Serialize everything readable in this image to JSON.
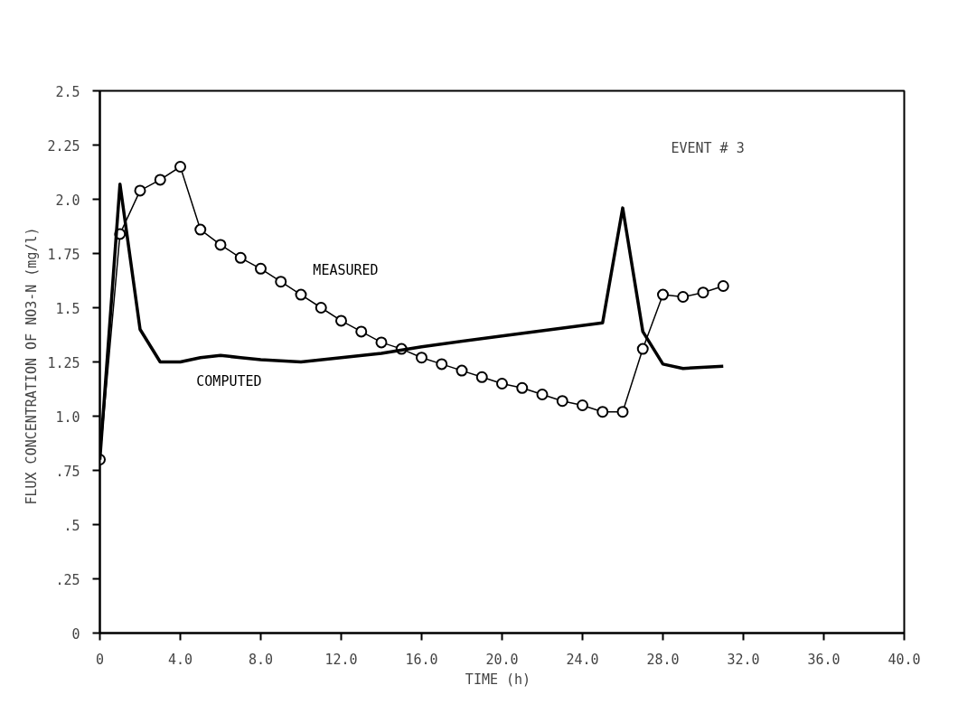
{
  "chart_data": {
    "type": "line",
    "xlabel": "TIME  (h)",
    "ylabel": "FLUX CONCENTRATION OF NO3-N  (mg/l)",
    "annotations": [
      "EVENT # 3"
    ],
    "xlim": [
      0,
      40
    ],
    "ylim": [
      0,
      2.5
    ],
    "xticks": [
      0,
      {
        "value": 4,
        "label": "4.0"
      },
      {
        "value": 8,
        "label": "8.0"
      },
      {
        "value": 12,
        "label": "12.0"
      },
      {
        "value": 16,
        "label": "16.0"
      },
      {
        "value": 20,
        "label": "20.0"
      },
      {
        "value": 24,
        "label": "24.0"
      },
      {
        "value": 28,
        "label": "28.0"
      },
      {
        "value": 32,
        "label": "32.0"
      },
      {
        "value": 36,
        "label": "36.0"
      },
      {
        "value": 40,
        "label": "40.0"
      }
    ],
    "yticks": [
      0,
      {
        "value": 0.25,
        "label": ".25"
      },
      {
        "value": 0.5,
        "label": ".5"
      },
      {
        "value": 0.75,
        "label": ".75"
      },
      {
        "value": 1,
        "label": "1.0"
      },
      1.25,
      1.5,
      1.75,
      {
        "value": 2,
        "label": "2.0"
      },
      2.25,
      2.5
    ],
    "grid": false,
    "series": [
      {
        "name": "MEASURED",
        "color": "#000000",
        "marker": "circle",
        "x": [
          0,
          1,
          2,
          3,
          4,
          5,
          6,
          7,
          8,
          9,
          10,
          11,
          12,
          13,
          14,
          15,
          16,
          17,
          18,
          19,
          20,
          21,
          22,
          23,
          24,
          25,
          26,
          27,
          28,
          29,
          30,
          31
        ],
        "values": [
          0.8,
          1.84,
          2.04,
          2.09,
          2.15,
          1.86,
          1.79,
          1.73,
          1.68,
          1.62,
          1.56,
          1.5,
          1.44,
          1.39,
          1.34,
          1.31,
          1.27,
          1.24,
          1.21,
          1.18,
          1.15,
          1.13,
          1.1,
          1.07,
          1.05,
          1.02,
          1.02,
          1.31,
          1.56,
          1.55,
          1.57,
          1.6
        ]
      },
      {
        "name": "COMPUTED",
        "color": "#000000",
        "marker": "none",
        "x": [
          0,
          1,
          2,
          3,
          4,
          5,
          6,
          7,
          8,
          10,
          12,
          14,
          16,
          20,
          25,
          26,
          27,
          28,
          29,
          31
        ],
        "values": [
          0.8,
          2.07,
          1.4,
          1.25,
          1.25,
          1.27,
          1.28,
          1.27,
          1.26,
          1.25,
          1.27,
          1.29,
          1.32,
          1.37,
          1.43,
          1.96,
          1.39,
          1.24,
          1.22,
          1.23
        ]
      }
    ]
  }
}
